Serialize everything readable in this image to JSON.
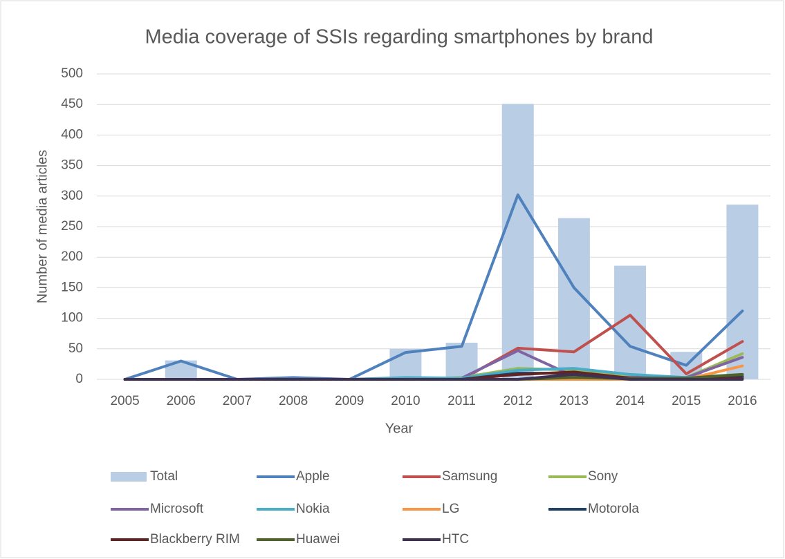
{
  "chart_data": {
    "type": "combo",
    "title": "Media coverage of SSIs regarding smartphones by brand",
    "x_label": "Year",
    "y_label": "Number of media articles",
    "categories": [
      "2005",
      "2006",
      "2007",
      "2008",
      "2009",
      "2010",
      "2011",
      "2012",
      "2013",
      "2014",
      "2015",
      "2016"
    ],
    "ylim": [
      0,
      500
    ],
    "yticks": [
      0,
      50,
      100,
      150,
      200,
      250,
      300,
      350,
      400,
      450,
      500
    ],
    "grid": true,
    "legend": "bottom",
    "series": [
      {
        "name": "Total",
        "type": "bar",
        "color": "#b9cde5",
        "values": [
          0,
          31,
          0,
          2,
          0,
          50,
          60,
          451,
          264,
          186,
          45,
          286
        ]
      },
      {
        "name": "Apple",
        "type": "line",
        "color": "#4f81bd",
        "values": [
          0,
          30,
          0,
          3,
          0,
          44,
          54,
          302,
          150,
          54,
          23,
          112
        ]
      },
      {
        "name": "Samsung",
        "type": "line",
        "color": "#c0504d",
        "values": [
          0,
          0,
          0,
          0,
          0,
          0,
          0,
          51,
          45,
          105,
          9,
          62
        ]
      },
      {
        "name": "Sony",
        "type": "line",
        "color": "#9bbb59",
        "values": [
          0,
          0,
          0,
          0,
          0,
          0,
          3,
          18,
          15,
          5,
          3,
          42
        ]
      },
      {
        "name": "Microsoft",
        "type": "line",
        "color": "#8064a2",
        "values": [
          0,
          0,
          0,
          0,
          0,
          0,
          2,
          47,
          5,
          3,
          3,
          36
        ]
      },
      {
        "name": "Nokia",
        "type": "line",
        "color": "#4bacc6",
        "values": [
          0,
          0,
          0,
          0,
          0,
          3,
          2,
          15,
          18,
          8,
          3,
          8
        ]
      },
      {
        "name": "LG",
        "type": "line",
        "color": "#f79646",
        "values": [
          0,
          0,
          0,
          0,
          0,
          0,
          0,
          0,
          0,
          0,
          0,
          22
        ]
      },
      {
        "name": "Motorola",
        "type": "line",
        "color": "#1f3f63",
        "values": [
          0,
          0,
          0,
          0,
          0,
          0,
          0,
          10,
          10,
          2,
          2,
          5
        ]
      },
      {
        "name": "Blackberry RIM",
        "type": "line",
        "color": "#632523",
        "values": [
          0,
          0,
          0,
          0,
          0,
          0,
          0,
          8,
          12,
          2,
          1,
          2
        ]
      },
      {
        "name": "Huawei",
        "type": "line",
        "color": "#4f6228",
        "values": [
          0,
          0,
          0,
          0,
          0,
          0,
          0,
          0,
          3,
          1,
          2,
          8
        ]
      },
      {
        "name": "HTC",
        "type": "line",
        "color": "#3f3151",
        "values": [
          0,
          0,
          0,
          0,
          0,
          0,
          0,
          0,
          8,
          0,
          0,
          0
        ]
      }
    ]
  }
}
